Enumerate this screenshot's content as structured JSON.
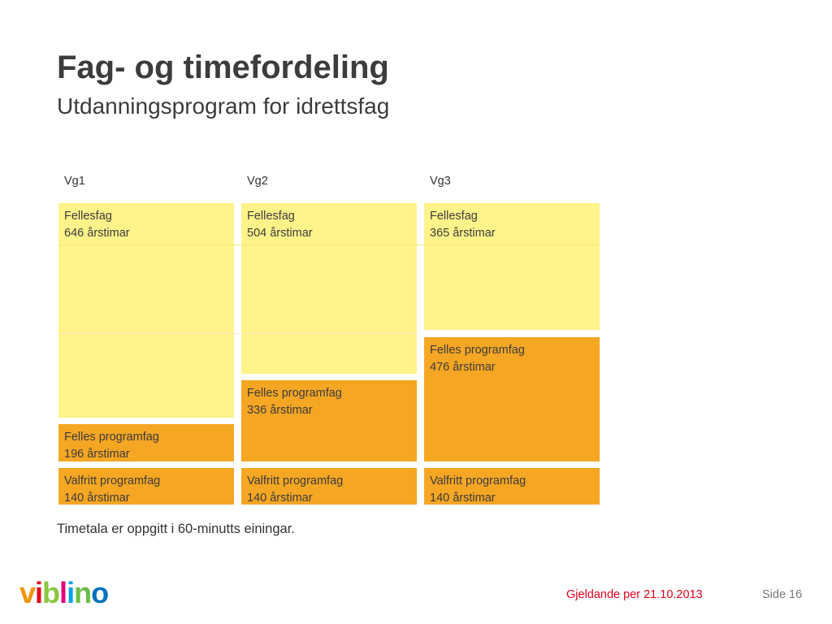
{
  "slide": {
    "title": "Fag- og timefordeling",
    "subtitle": "Utdanningsprogram for idrettsfag",
    "note": "Timetala er oppgitt i 60-minutts einingar."
  },
  "colors": {
    "fellesfag": "#fff38a",
    "programfag": "#f5a623",
    "footer_date": "#e2001a"
  },
  "columns": [
    {
      "label": "Vg1",
      "fellesfag": {
        "name": "Fellesfag",
        "hours": "646 årstimar"
      },
      "programfag": {
        "name": "Felles programfag",
        "hours": "196 årstimar"
      },
      "valfritt": {
        "name": "Valfritt programfag",
        "hours": "140 årstimar"
      }
    },
    {
      "label": "Vg2",
      "fellesfag": {
        "name": "Fellesfag",
        "hours": "504 årstimar"
      },
      "programfag": {
        "name": "Felles programfag",
        "hours": "336 årstimar"
      },
      "valfritt": {
        "name": "Valfritt programfag",
        "hours": "140 årstimar"
      }
    },
    {
      "label": "Vg3",
      "fellesfag": {
        "name": "Fellesfag",
        "hours": "365 årstimar"
      },
      "programfag": {
        "name": "Felles programfag",
        "hours": "476 årstimar"
      },
      "valfritt": {
        "name": "Valfritt programfag",
        "hours": "140 årstimar"
      }
    }
  ],
  "footer": {
    "date_text": "Gjeldande per 21.10.2013",
    "page_text": "Side 16",
    "logo_text": "viblino"
  }
}
